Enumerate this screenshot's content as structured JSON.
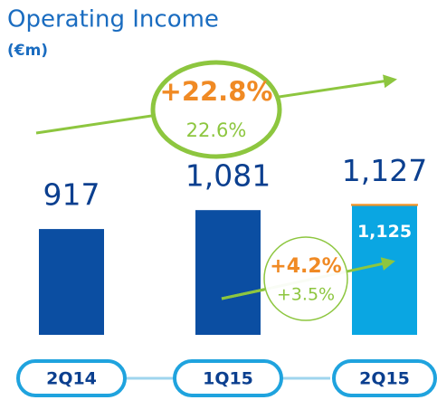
{
  "chart_data": {
    "type": "bar",
    "title": "Operating Income",
    "subtitle": "(€m)",
    "categories": [
      "2Q14",
      "1Q15",
      "2Q15"
    ],
    "ylim": [
      0,
      2000
    ],
    "series": [
      {
        "colors": [
          "#0b4ea2",
          "#0b4ea2",
          "#0aa6e2"
        ],
        "values": [
          917,
          1081,
          1125
        ],
        "value_labels": [
          null,
          null,
          "1,125"
        ]
      },
      {
        "color": "#f39325",
        "values": [
          null,
          null,
          2
        ]
      }
    ],
    "totals": [
      917,
      1081,
      1127
    ],
    "total_labels": [
      "917",
      "1,081",
      "1,127"
    ],
    "annotations": [
      {
        "main": "+22.8%",
        "sub": "22.6%"
      },
      {
        "main": "+4.2%",
        "sub": "+3.5%"
      }
    ]
  }
}
